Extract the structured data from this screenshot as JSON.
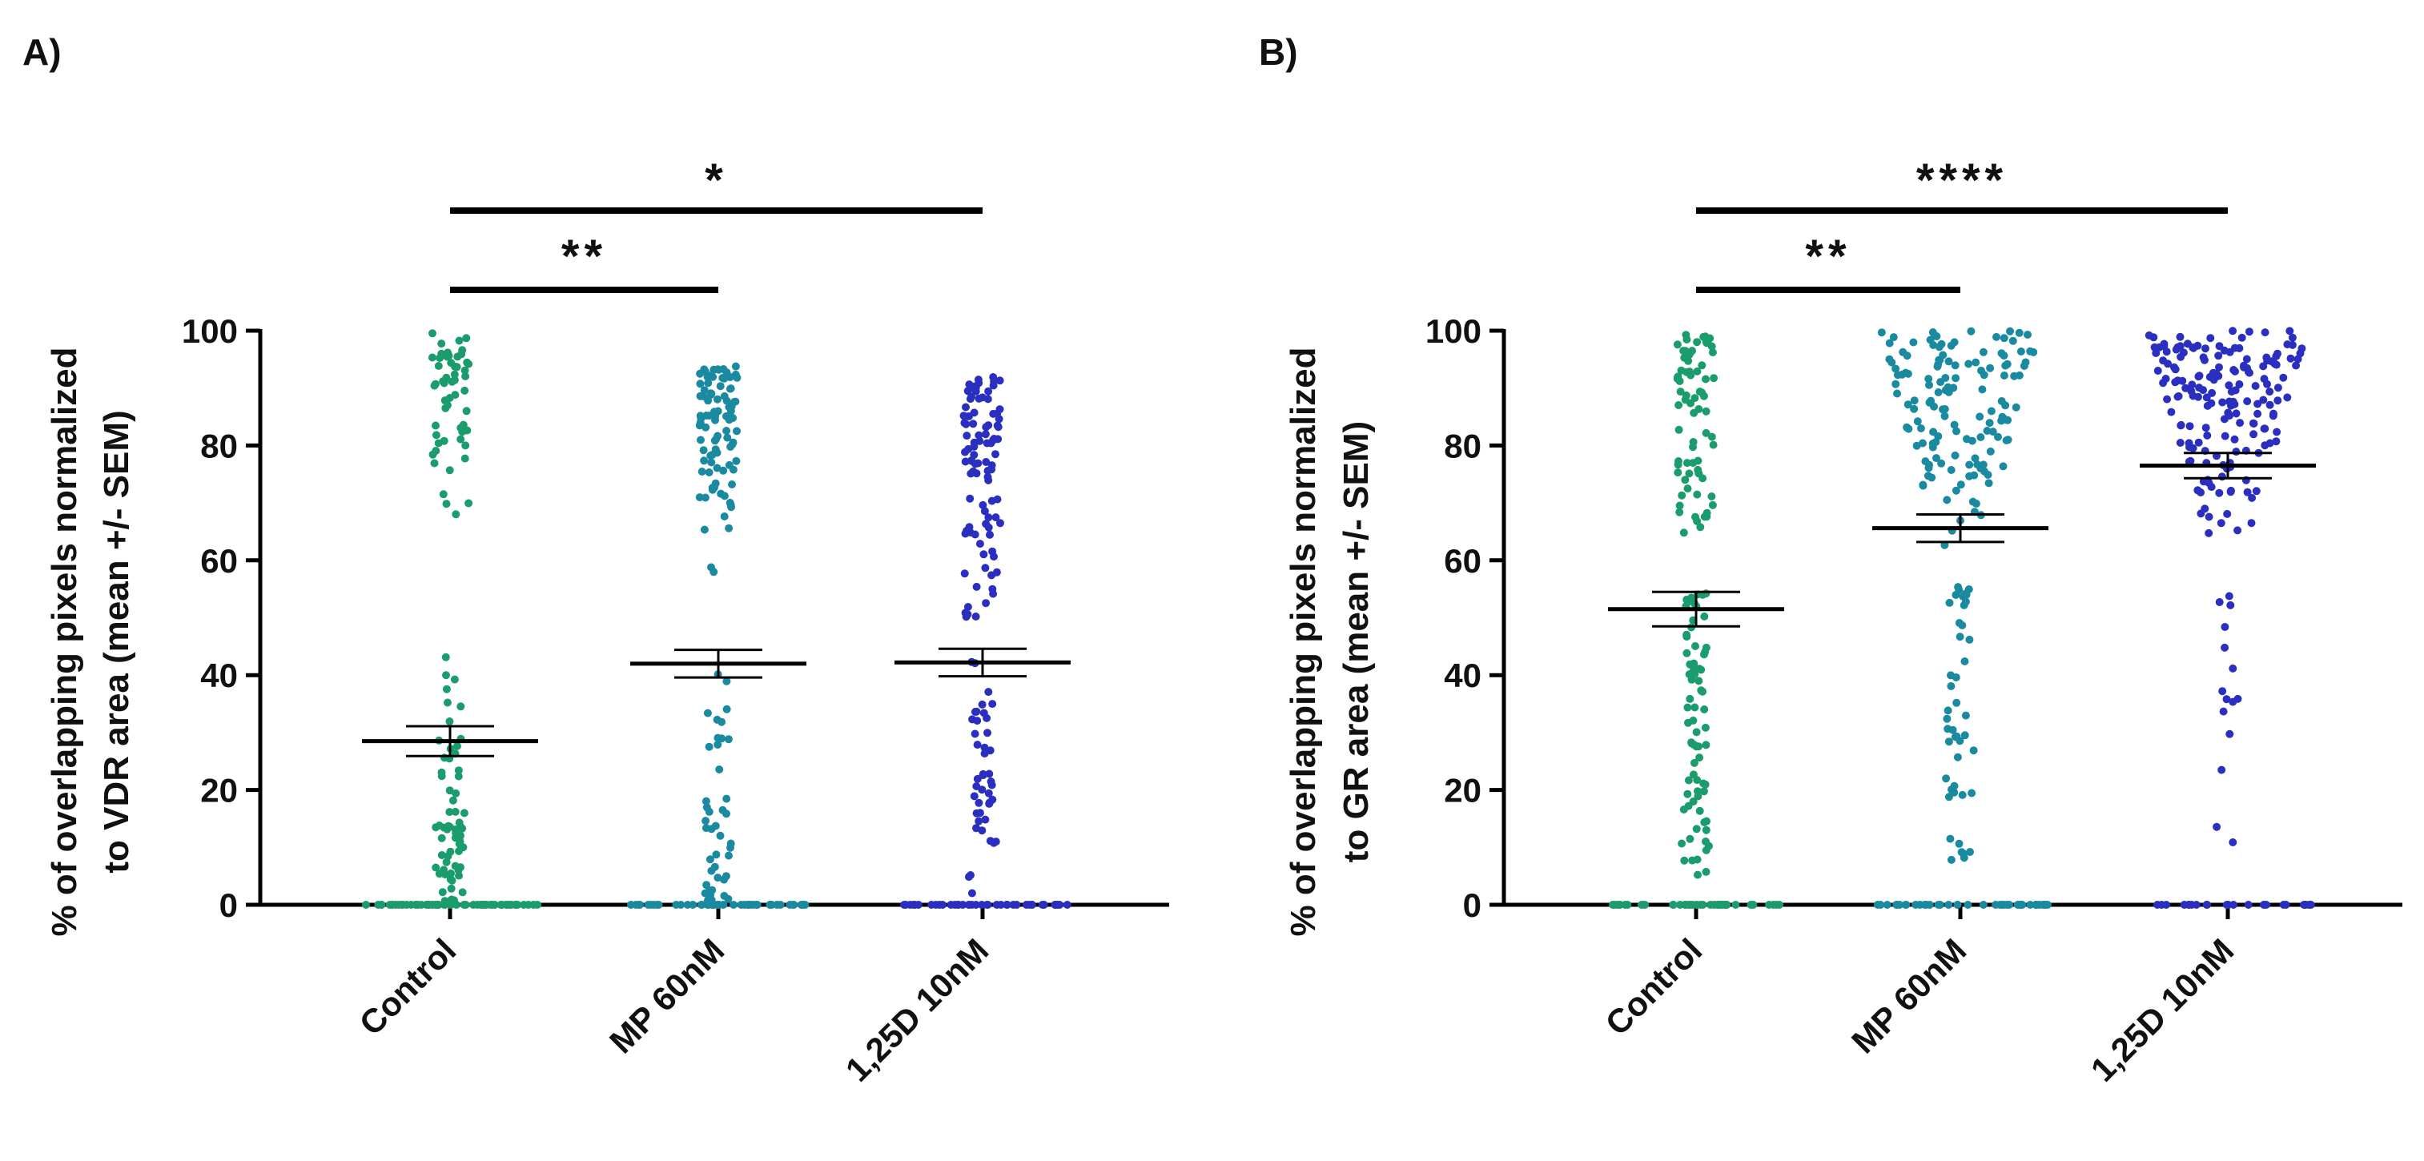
{
  "panels": [
    {
      "letter": "A)"
    },
    {
      "letter": "B)"
    }
  ],
  "chart_data": [
    {
      "type": "scatter",
      "subtype": "dot-plot (mean +/- SEM)",
      "panel": "A)",
      "ylabel_line1": "% of overlapping pixels normalized",
      "ylabel_line2": "to VDR area (mean +/- SEM)",
      "ylim": [
        0,
        100
      ],
      "yticks": [
        "0",
        "20",
        "40",
        "60",
        "80",
        "100"
      ],
      "categories": [
        "Control",
        "MP 60nM",
        "1,25D 10nM"
      ],
      "colors": [
        "#1a9c6c",
        "#1a8aa0",
        "#2a2fc0"
      ],
      "mean": [
        28.5,
        42,
        42.2
      ],
      "sem": [
        2.6,
        2.4,
        2.4
      ],
      "point_counts": [
        {
          "n_zero": 60,
          "n_low": 45,
          "n_mid": 18,
          "n_high": 55,
          "high_range": [
            62,
            100
          ],
          "low_range": [
            0.5,
            20
          ],
          "mid_range": [
            20,
            45
          ]
        },
        {
          "n_zero": 50,
          "n_low": 30,
          "n_mid": 12,
          "n_high": 95,
          "high_range": [
            55,
            94
          ],
          "low_range": [
            0.5,
            20
          ],
          "mid_range": [
            20,
            45
          ]
        },
        {
          "n_zero": 40,
          "n_low": 18,
          "n_mid": 25,
          "n_high": 95,
          "high_range": [
            45,
            92
          ],
          "low_range": [
            0.5,
            20
          ],
          "mid_range": [
            20,
            45
          ]
        }
      ],
      "comparisons": [
        {
          "from": 0,
          "to": 1,
          "label": "**"
        },
        {
          "from": 0,
          "to": 2,
          "label": "*"
        }
      ]
    },
    {
      "type": "scatter",
      "subtype": "dot-plot (mean +/- SEM)",
      "panel": "B)",
      "ylabel_line1": "% of overlapping pixels normalized",
      "ylabel_line2": "to GR area (mean +/- SEM)",
      "ylim": [
        0,
        100
      ],
      "yticks": [
        "0",
        "20",
        "40",
        "60",
        "80",
        "100"
      ],
      "categories": [
        "Control",
        "MP 60nM",
        "1,25D 10nM"
      ],
      "colors": [
        "#1a9c6c",
        "#1a8aa0",
        "#2a2fc0"
      ],
      "mean": [
        51.5,
        65.6,
        76.5
      ],
      "sem": [
        3.0,
        2.4,
        2.2
      ],
      "point_counts": [
        {
          "n_zero": 40,
          "n_low": 35,
          "n_mid": 40,
          "n_high": 75,
          "high_range": [
            60,
            100
          ],
          "low_range": [
            5,
            30
          ],
          "mid_range": [
            30,
            55
          ]
        },
        {
          "n_zero": 40,
          "n_low": 30,
          "n_mid": 15,
          "n_high": 140,
          "high_range": [
            60,
            100
          ],
          "low_range": [
            5,
            40
          ],
          "mid_range": [
            40,
            58
          ]
        },
        {
          "n_zero": 25,
          "n_low": 5,
          "n_mid": 10,
          "n_high": 175,
          "high_range": [
            60,
            100
          ],
          "low_range": [
            10,
            35
          ],
          "mid_range": [
            35,
            55
          ]
        }
      ],
      "comparisons": [
        {
          "from": 0,
          "to": 1,
          "label": "**"
        },
        {
          "from": 0,
          "to": 2,
          "label": "****"
        }
      ]
    }
  ]
}
